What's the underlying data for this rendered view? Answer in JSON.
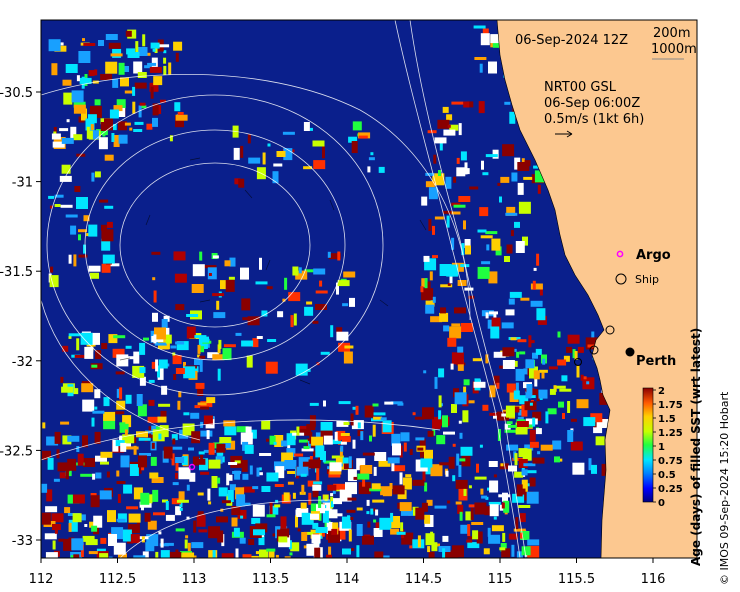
{
  "map": {
    "date_title": "06-Sep-2024 12Z",
    "depth_contours": [
      "200m",
      "1000m"
    ],
    "current_source": "NRT00 GSL",
    "current_time": "06-Sep 06:00Z",
    "current_scale": "0.5m/s (1kt 6h)",
    "legend": {
      "argo": "Argo",
      "ship": "Ship"
    },
    "city": "Perth",
    "x_ticks": [
      "112",
      "112.5",
      "113",
      "113.5",
      "114",
      "114.5",
      "115",
      "115.5",
      "116"
    ],
    "y_ticks": [
      "-30.5",
      "-31",
      "-31.5",
      "-32",
      "-32.5",
      "-33"
    ],
    "colors": {
      "ocean_base": "#0a1f8c",
      "land": "#fcc890",
      "argo": "#ff00ff"
    }
  },
  "colorbar": {
    "title": "Age (days) of filled SST (wrt latest)",
    "ticks": [
      "2",
      "1.75",
      "1.5",
      "1.25",
      "1",
      "0.75",
      "0.5",
      "0.25",
      "0"
    ],
    "range": [
      0,
      2
    ]
  },
  "credit": "© IMOS 09-Sep-2024 15:20 Hobart"
}
